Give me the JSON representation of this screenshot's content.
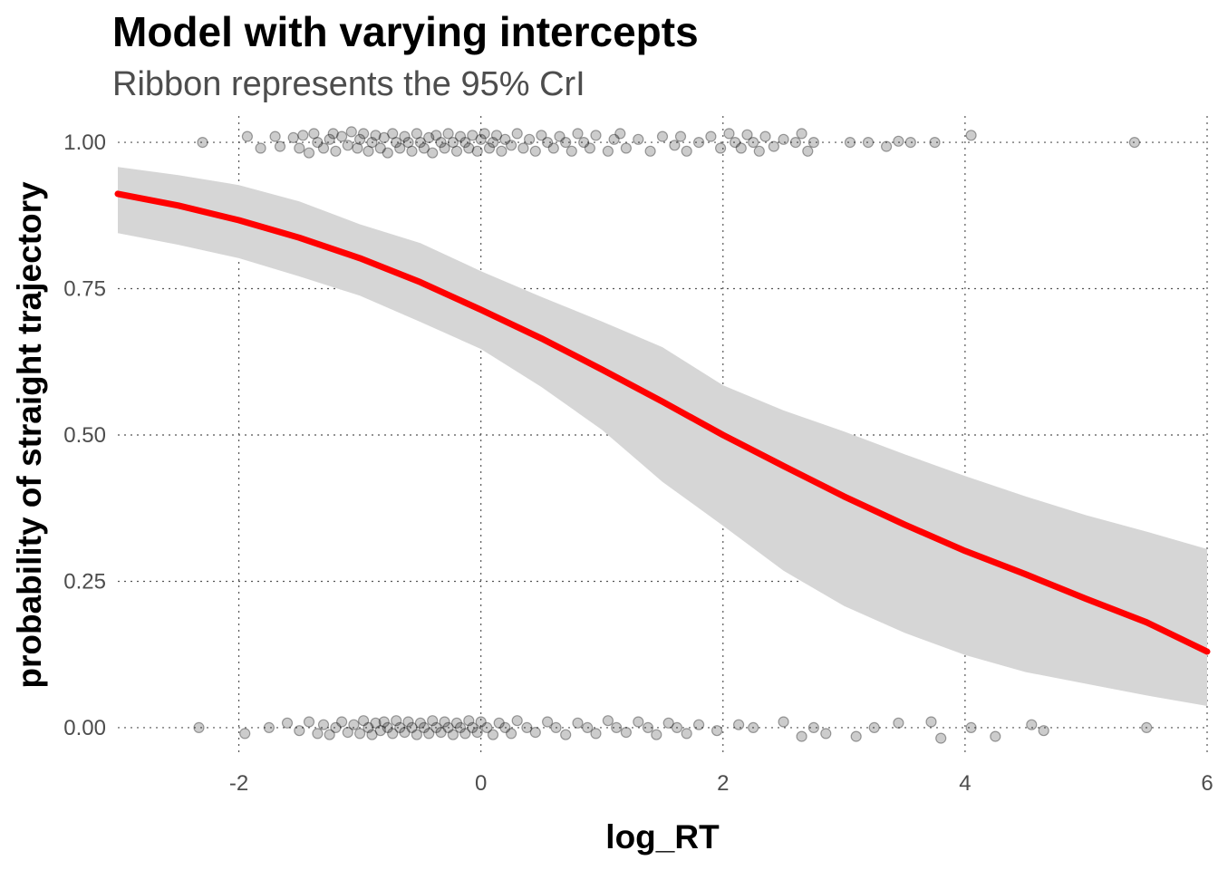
{
  "chart_data": {
    "type": "line",
    "title": "Model with varying intercepts",
    "subtitle": "Ribbon represents the 95% CrI",
    "xlabel": "log_RT",
    "ylabel": "probability of straight trajectory",
    "xlim": [
      -3.0,
      6.0
    ],
    "ylim": [
      -0.045,
      1.045
    ],
    "x_ticks": [
      -2,
      0,
      2,
      4,
      6
    ],
    "x_tick_labels": [
      "-2",
      "0",
      "2",
      "4",
      "6"
    ],
    "y_ticks": [
      0.0,
      0.25,
      0.5,
      0.75,
      1.0
    ],
    "y_tick_labels": [
      "0.00",
      "0.25",
      "0.50",
      "0.75",
      "1.00"
    ],
    "grid": true,
    "line_color": "#ff0000",
    "ribbon_color": "#d6d6d6",
    "point_color": "#000000",
    "fit": {
      "x": [
        -3.0,
        -2.5,
        -2.0,
        -1.5,
        -1.0,
        -0.5,
        0.0,
        0.5,
        1.0,
        1.5,
        2.0,
        2.5,
        3.0,
        3.5,
        4.0,
        4.5,
        5.0,
        5.5,
        6.0
      ],
      "y": [
        0.912,
        0.892,
        0.867,
        0.837,
        0.802,
        0.761,
        0.714,
        0.665,
        0.612,
        0.557,
        0.5,
        0.447,
        0.395,
        0.347,
        0.302,
        0.262,
        0.22,
        0.18,
        0.13
      ],
      "lower": [
        0.845,
        0.825,
        0.802,
        0.771,
        0.738,
        0.693,
        0.647,
        0.582,
        0.509,
        0.42,
        0.345,
        0.268,
        0.208,
        0.162,
        0.124,
        0.095,
        0.075,
        0.055,
        0.037
      ],
      "upper": [
        0.958,
        0.944,
        0.927,
        0.899,
        0.86,
        0.828,
        0.78,
        0.736,
        0.694,
        0.65,
        0.585,
        0.542,
        0.506,
        0.467,
        0.43,
        0.395,
        0.363,
        0.335,
        0.305
      ]
    },
    "points_y1": [
      [
        -2.3,
        1.0
      ],
      [
        -1.93,
        1.01
      ],
      [
        -1.82,
        0.99
      ],
      [
        -1.7,
        1.01
      ],
      [
        -1.66,
        0.993
      ],
      [
        -1.55,
        1.008
      ],
      [
        -1.5,
        0.99
      ],
      [
        -1.47,
        1.012
      ],
      [
        -1.42,
        0.982
      ],
      [
        -1.38,
        1.015
      ],
      [
        -1.35,
        1.0
      ],
      [
        -1.3,
        0.99
      ],
      [
        -1.25,
        1.005
      ],
      [
        -1.22,
        1.015
      ],
      [
        -1.2,
        0.985
      ],
      [
        -1.15,
        1.01
      ],
      [
        -1.1,
        0.995
      ],
      [
        -1.07,
        1.018
      ],
      [
        -1.02,
        0.99
      ],
      [
        -1.0,
        1.005
      ],
      [
        -0.97,
        1.015
      ],
      [
        -0.93,
        0.985
      ],
      [
        -0.9,
        1.0
      ],
      [
        -0.87,
        1.012
      ],
      [
        -0.83,
        0.99
      ],
      [
        -0.8,
        1.008
      ],
      [
        -0.77,
        0.982
      ],
      [
        -0.73,
        1.015
      ],
      [
        -0.7,
        1.0
      ],
      [
        -0.67,
        0.99
      ],
      [
        -0.63,
        1.01
      ],
      [
        -0.6,
        1.0
      ],
      [
        -0.57,
        0.985
      ],
      [
        -0.53,
        1.015
      ],
      [
        -0.5,
        1.0
      ],
      [
        -0.47,
        0.99
      ],
      [
        -0.43,
        1.008
      ],
      [
        -0.4,
        0.982
      ],
      [
        -0.37,
        1.012
      ],
      [
        -0.33,
        1.0
      ],
      [
        -0.3,
        0.99
      ],
      [
        -0.27,
        1.015
      ],
      [
        -0.23,
        1.0
      ],
      [
        -0.2,
        0.985
      ],
      [
        -0.17,
        1.01
      ],
      [
        -0.13,
        1.0
      ],
      [
        -0.1,
        0.99
      ],
      [
        -0.07,
        1.012
      ],
      [
        -0.03,
        0.985
      ],
      [
        0.0,
        1.005
      ],
      [
        0.03,
        1.015
      ],
      [
        0.07,
        0.99
      ],
      [
        0.1,
        1.0
      ],
      [
        0.13,
        1.012
      ],
      [
        0.17,
        0.985
      ],
      [
        0.2,
        1.005
      ],
      [
        0.25,
        0.995
      ],
      [
        0.3,
        1.015
      ],
      [
        0.35,
        0.99
      ],
      [
        0.4,
        1.005
      ],
      [
        0.45,
        0.985
      ],
      [
        0.5,
        1.012
      ],
      [
        0.55,
        1.0
      ],
      [
        0.6,
        0.99
      ],
      [
        0.65,
        1.01
      ],
      [
        0.7,
        1.0
      ],
      [
        0.75,
        0.985
      ],
      [
        0.8,
        1.015
      ],
      [
        0.85,
        1.0
      ],
      [
        0.9,
        0.99
      ],
      [
        0.95,
        1.012
      ],
      [
        1.05,
        0.985
      ],
      [
        1.1,
        1.005
      ],
      [
        1.15,
        1.015
      ],
      [
        1.2,
        0.99
      ],
      [
        1.3,
        1.005
      ],
      [
        1.4,
        0.985
      ],
      [
        1.5,
        1.01
      ],
      [
        1.6,
        0.995
      ],
      [
        1.65,
        1.01
      ],
      [
        1.7,
        0.985
      ],
      [
        1.8,
        1.0
      ],
      [
        1.9,
        1.01
      ],
      [
        1.98,
        0.99
      ],
      [
        2.05,
        1.015
      ],
      [
        2.1,
        1.0
      ],
      [
        2.15,
        0.99
      ],
      [
        2.2,
        1.013
      ],
      [
        2.25,
        1.0
      ],
      [
        2.3,
        0.985
      ],
      [
        2.35,
        1.01
      ],
      [
        2.42,
        0.993
      ],
      [
        2.5,
        1.005
      ],
      [
        2.6,
        1.0
      ],
      [
        2.65,
        1.015
      ],
      [
        2.7,
        0.985
      ],
      [
        2.75,
        1.0
      ],
      [
        3.05,
        1.0
      ],
      [
        3.2,
        1.0
      ],
      [
        3.35,
        0.993
      ],
      [
        3.45,
        1.002
      ],
      [
        3.55,
        1.0
      ],
      [
        3.75,
        1.0
      ],
      [
        4.05,
        1.012
      ],
      [
        5.4,
        1.0
      ]
    ],
    "points_y0": [
      [
        -2.33,
        0.0
      ],
      [
        -1.95,
        -0.01
      ],
      [
        -1.75,
        0.0
      ],
      [
        -1.6,
        0.008
      ],
      [
        -1.5,
        -0.005
      ],
      [
        -1.42,
        0.01
      ],
      [
        -1.35,
        -0.01
      ],
      [
        -1.3,
        0.005
      ],
      [
        -1.25,
        -0.012
      ],
      [
        -1.2,
        0.0
      ],
      [
        -1.15,
        0.01
      ],
      [
        -1.1,
        -0.008
      ],
      [
        -1.05,
        0.005
      ],
      [
        -1.0,
        -0.01
      ],
      [
        -0.97,
        0.012
      ],
      [
        -0.93,
        0.0
      ],
      [
        -0.9,
        -0.012
      ],
      [
        -0.87,
        0.008
      ],
      [
        -0.83,
        -0.005
      ],
      [
        -0.8,
        0.01
      ],
      [
        -0.77,
        0.0
      ],
      [
        -0.73,
        -0.01
      ],
      [
        -0.7,
        0.012
      ],
      [
        -0.67,
        0.0
      ],
      [
        -0.63,
        -0.008
      ],
      [
        -0.6,
        0.01
      ],
      [
        -0.57,
        0.0
      ],
      [
        -0.53,
        -0.012
      ],
      [
        -0.5,
        0.008
      ],
      [
        -0.47,
        0.0
      ],
      [
        -0.43,
        -0.01
      ],
      [
        -0.4,
        0.012
      ],
      [
        -0.37,
        0.0
      ],
      [
        -0.33,
        -0.008
      ],
      [
        -0.3,
        0.01
      ],
      [
        -0.27,
        0.0
      ],
      [
        -0.23,
        -0.012
      ],
      [
        -0.2,
        0.008
      ],
      [
        -0.17,
        0.0
      ],
      [
        -0.13,
        -0.01
      ],
      [
        -0.1,
        0.012
      ],
      [
        -0.07,
        0.0
      ],
      [
        -0.03,
        -0.008
      ],
      [
        0.0,
        0.01
      ],
      [
        0.05,
        0.0
      ],
      [
        0.1,
        -0.012
      ],
      [
        0.15,
        0.008
      ],
      [
        0.2,
        0.0
      ],
      [
        0.25,
        -0.01
      ],
      [
        0.3,
        0.012
      ],
      [
        0.38,
        0.0
      ],
      [
        0.45,
        -0.008
      ],
      [
        0.55,
        0.01
      ],
      [
        0.62,
        0.0
      ],
      [
        0.7,
        -0.012
      ],
      [
        0.8,
        0.008
      ],
      [
        0.88,
        0.0
      ],
      [
        0.95,
        -0.01
      ],
      [
        1.05,
        0.012
      ],
      [
        1.12,
        0.0
      ],
      [
        1.2,
        -0.008
      ],
      [
        1.3,
        0.01
      ],
      [
        1.38,
        0.0
      ],
      [
        1.45,
        -0.012
      ],
      [
        1.55,
        0.008
      ],
      [
        1.62,
        0.0
      ],
      [
        1.7,
        -0.01
      ],
      [
        1.8,
        0.005
      ],
      [
        1.95,
        -0.005
      ],
      [
        2.13,
        0.005
      ],
      [
        2.25,
        0.0
      ],
      [
        2.5,
        0.01
      ],
      [
        2.65,
        -0.015
      ],
      [
        2.75,
        0.0
      ],
      [
        2.85,
        -0.01
      ],
      [
        3.1,
        -0.015
      ],
      [
        3.25,
        0.0
      ],
      [
        3.45,
        0.008
      ],
      [
        3.72,
        0.01
      ],
      [
        3.8,
        -0.018
      ],
      [
        4.05,
        0.0
      ],
      [
        4.25,
        -0.015
      ],
      [
        4.55,
        0.005
      ],
      [
        4.65,
        -0.005
      ],
      [
        5.5,
        0.0
      ]
    ]
  }
}
